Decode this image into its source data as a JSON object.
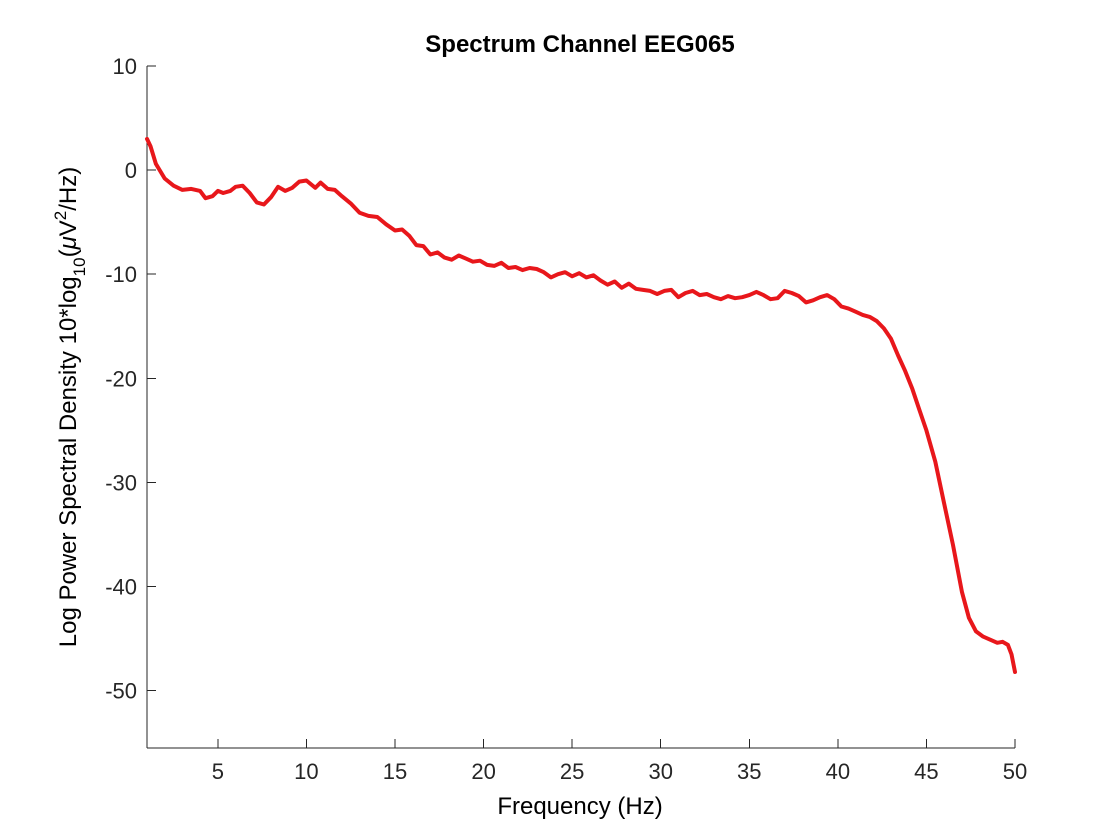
{
  "chart_data": {
    "type": "line",
    "title": "Spectrum Channel EEG065",
    "xlabel": "Frequency (Hz)",
    "ylabel": {
      "prefix": "Log Power Spectral Density 10*log",
      "sub": "10",
      "unit_open": "(",
      "mu": "μ",
      "unit_mid": "V",
      "sup": "2",
      "unit_close": "/Hz)"
    },
    "xlim": [
      1,
      50
    ],
    "ylim": [
      -55.5,
      10
    ],
    "grid": false,
    "x_ticks": [
      5,
      10,
      15,
      20,
      25,
      30,
      35,
      40,
      45,
      50
    ],
    "x_tick_labels": [
      "5",
      "10",
      "15",
      "20",
      "25",
      "30",
      "35",
      "40",
      "45",
      "50"
    ],
    "y_ticks": [
      10,
      0,
      -10,
      -20,
      -30,
      -40,
      -50
    ],
    "y_tick_labels": [
      "10",
      "0",
      "-10",
      "-20",
      "-30",
      "-40",
      "-50"
    ],
    "series": [
      {
        "color": "#e8171b",
        "x": [
          1.0,
          1.2,
          1.5,
          2.0,
          2.5,
          3.0,
          3.5,
          4.0,
          4.3,
          4.7,
          5.0,
          5.3,
          5.7,
          6.0,
          6.4,
          6.8,
          7.2,
          7.6,
          8.0,
          8.4,
          8.8,
          9.2,
          9.6,
          10.0,
          10.5,
          10.8,
          11.2,
          11.6,
          12.0,
          12.5,
          13.0,
          13.5,
          14.0,
          14.5,
          15.0,
          15.4,
          15.8,
          16.2,
          16.6,
          17.0,
          17.4,
          17.8,
          18.2,
          18.6,
          19.0,
          19.4,
          19.8,
          20.2,
          20.6,
          21.0,
          21.4,
          21.8,
          22.2,
          22.6,
          23.0,
          23.4,
          23.8,
          24.2,
          24.6,
          25.0,
          25.4,
          25.8,
          26.2,
          26.6,
          27.0,
          27.4,
          27.8,
          28.2,
          28.6,
          29.0,
          29.4,
          29.8,
          30.2,
          30.6,
          31.0,
          31.4,
          31.8,
          32.2,
          32.6,
          33.0,
          33.4,
          33.8,
          34.2,
          34.6,
          35.0,
          35.4,
          35.8,
          36.2,
          36.6,
          37.0,
          37.4,
          37.8,
          38.2,
          38.6,
          39.0,
          39.4,
          39.8,
          40.2,
          40.6,
          41.0,
          41.4,
          41.8,
          42.2,
          42.6,
          43.0,
          43.4,
          43.8,
          44.2,
          44.6,
          45.0,
          45.5,
          46.0,
          46.5,
          47.0,
          47.4,
          47.8,
          48.2,
          48.6,
          49.0,
          49.3,
          49.6,
          49.8,
          50.0
        ],
        "values": [
          3.0,
          2.3,
          0.6,
          -0.8,
          -1.5,
          -1.9,
          -1.8,
          -2.0,
          -2.7,
          -2.5,
          -2.0,
          -2.2,
          -2.0,
          -1.6,
          -1.5,
          -2.2,
          -3.1,
          -3.3,
          -2.6,
          -1.6,
          -2.0,
          -1.7,
          -1.1,
          -1.0,
          -1.7,
          -1.2,
          -1.8,
          -1.9,
          -2.5,
          -3.2,
          -4.1,
          -4.4,
          -4.5,
          -5.2,
          -5.8,
          -5.7,
          -6.3,
          -7.2,
          -7.3,
          -8.1,
          -7.9,
          -8.4,
          -8.6,
          -8.2,
          -8.5,
          -8.8,
          -8.7,
          -9.1,
          -9.2,
          -8.9,
          -9.4,
          -9.3,
          -9.6,
          -9.4,
          -9.5,
          -9.8,
          -10.3,
          -10.0,
          -9.8,
          -10.2,
          -9.9,
          -10.3,
          -10.1,
          -10.6,
          -11.0,
          -10.7,
          -11.3,
          -10.9,
          -11.4,
          -11.5,
          -11.6,
          -11.9,
          -11.6,
          -11.5,
          -12.2,
          -11.8,
          -11.6,
          -12.0,
          -11.9,
          -12.2,
          -12.4,
          -12.1,
          -12.3,
          -12.2,
          -12.0,
          -11.7,
          -12.0,
          -12.4,
          -12.3,
          -11.6,
          -11.8,
          -12.1,
          -12.7,
          -12.5,
          -12.2,
          -12.0,
          -12.4,
          -13.1,
          -13.3,
          -13.6,
          -13.9,
          -14.1,
          -14.5,
          -15.2,
          -16.2,
          -17.8,
          -19.3,
          -21.0,
          -23.0,
          -25.0,
          -28.0,
          -32.0,
          -36.0,
          -40.5,
          -43.0,
          -44.3,
          -44.8,
          -45.1,
          -45.4,
          -45.3,
          -45.6,
          -46.5,
          -48.2
        ]
      }
    ]
  }
}
